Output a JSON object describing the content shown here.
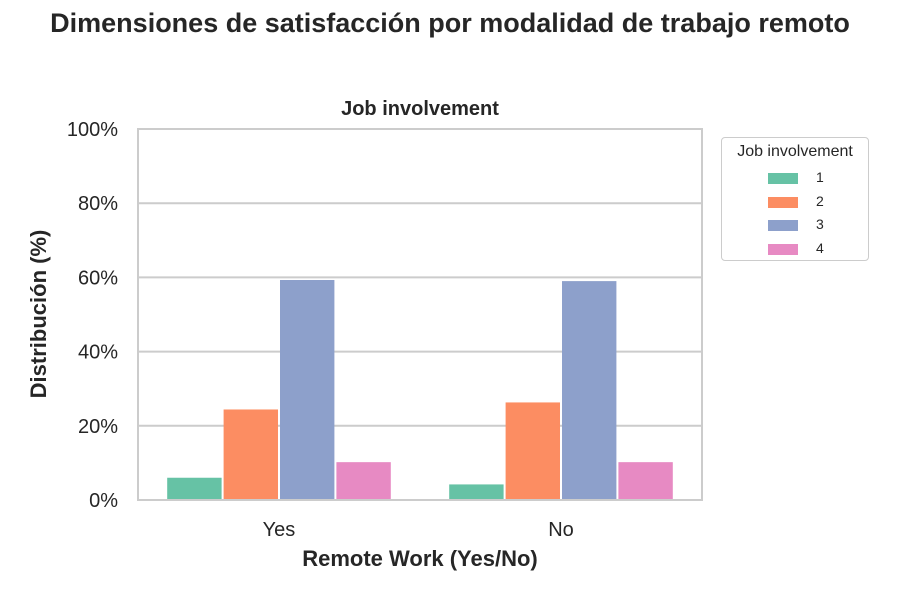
{
  "suptitle": "Dimensiones de satisfacción por modalidad de trabajo remoto",
  "chart_data": {
    "type": "bar",
    "title": "Job involvement",
    "xlabel": "Remote Work (Yes/No)",
    "ylabel": "Distribución (%)",
    "categories": [
      "Yes",
      "No"
    ],
    "ylim": [
      0,
      100
    ],
    "yticks": [
      "0%",
      "20%",
      "40%",
      "60%",
      "80%",
      "100%"
    ],
    "grid": true,
    "legend": {
      "title": "Job involvement",
      "placement": "right-outside-top"
    },
    "series": [
      {
        "name": "1",
        "color": "#66c2a5",
        "values": [
          6.0,
          4.2
        ]
      },
      {
        "name": "2",
        "color": "#fc8d62",
        "values": [
          24.4,
          26.3
        ]
      },
      {
        "name": "3",
        "color": "#8da0cb",
        "values": [
          59.3,
          59.0
        ]
      },
      {
        "name": "4",
        "color": "#e78ac3",
        "values": [
          10.2,
          10.2
        ]
      }
    ]
  }
}
